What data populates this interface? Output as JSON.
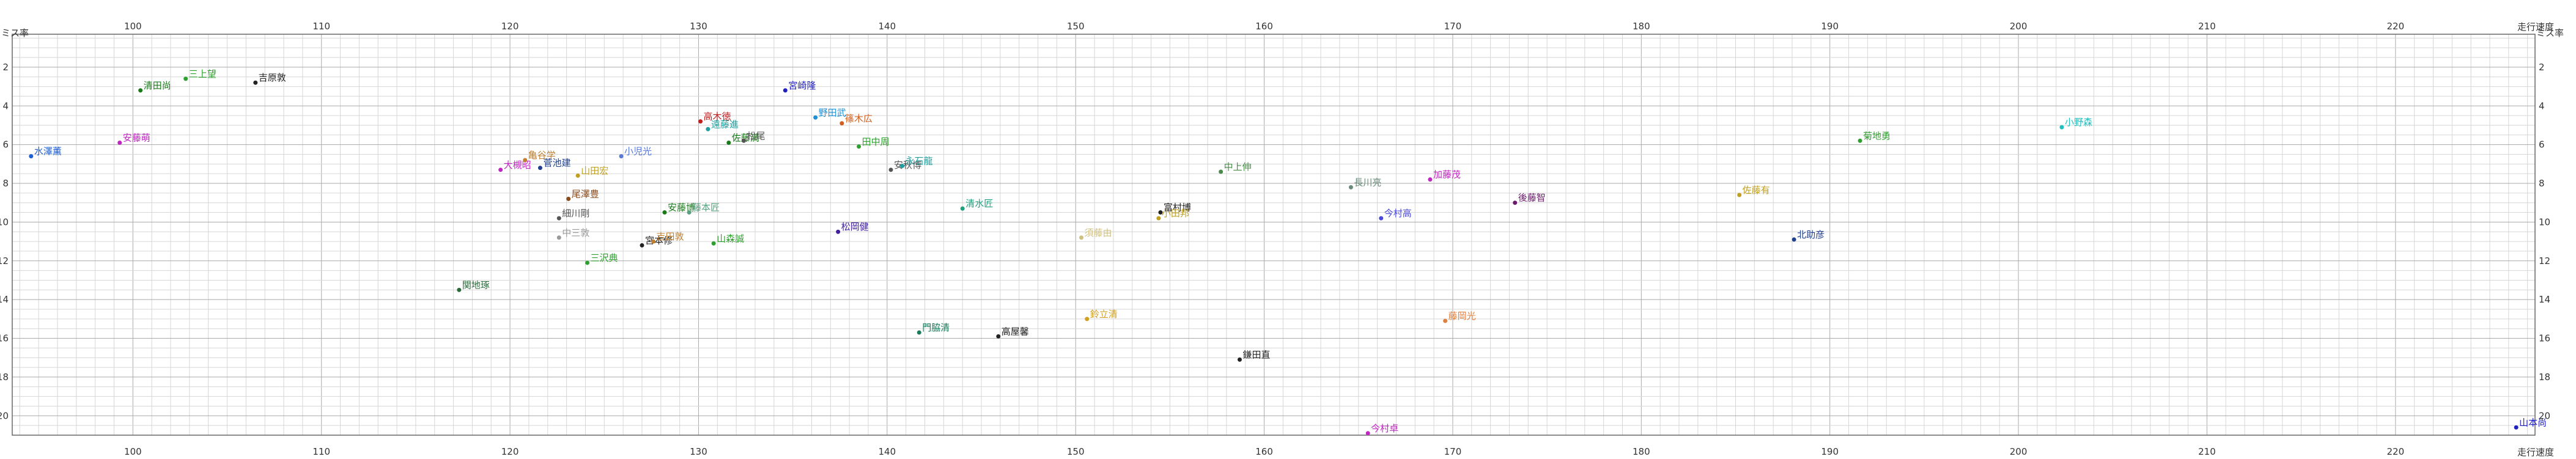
{
  "chart_data": {
    "type": "scatter",
    "xlabel": "走行速度",
    "ylabel": "ミス率",
    "xlim": [
      93.6,
      227.4
    ],
    "ylim": [
      0.3,
      21.0
    ],
    "x_ticks": [
      100,
      110,
      120,
      130,
      140,
      150,
      160,
      170,
      180,
      190,
      200,
      210,
      220
    ],
    "y_ticks": [
      2,
      4,
      6,
      8,
      10,
      12,
      14,
      16,
      18,
      20
    ],
    "grid": true,
    "points": [
      {
        "name": "水澤薫",
        "x": 94.6,
        "y": 6.6,
        "color": "#1f5fd6"
      },
      {
        "name": "安藤萌",
        "x": 99.3,
        "y": 5.9,
        "color": "#c026c0"
      },
      {
        "name": "清田尚",
        "x": 100.4,
        "y": 3.2,
        "color": "#1a7a1a"
      },
      {
        "name": "三上望",
        "x": 102.8,
        "y": 2.6,
        "color": "#2ea02e"
      },
      {
        "name": "吉原敦",
        "x": 106.5,
        "y": 2.8,
        "color": "#222222"
      },
      {
        "name": "関地琢",
        "x": 117.3,
        "y": 13.5,
        "color": "#2a6b3a"
      },
      {
        "name": "大槻昭",
        "x": 119.5,
        "y": 7.3,
        "color": "#c026c0"
      },
      {
        "name": "亀谷学",
        "x": 120.8,
        "y": 6.8,
        "color": "#c08030"
      },
      {
        "name": "菅池建",
        "x": 121.6,
        "y": 7.2,
        "color": "#1f3f8f"
      },
      {
        "name": "山田宏",
        "x": 123.6,
        "y": 7.6,
        "color": "#c0a020"
      },
      {
        "name": "小児光",
        "x": 125.9,
        "y": 6.6,
        "color": "#5a7ad6"
      },
      {
        "name": "尾澤豊",
        "x": 123.1,
        "y": 8.8,
        "color": "#8b4a1a"
      },
      {
        "name": "細川剛",
        "x": 122.6,
        "y": 9.8,
        "color": "#555555"
      },
      {
        "name": "中三敦",
        "x": 122.6,
        "y": 10.8,
        "color": "#9a9a9a"
      },
      {
        "name": "三沢典",
        "x": 124.1,
        "y": 12.1,
        "color": "#2ea02e"
      },
      {
        "name": "宮本修",
        "x": 127.0,
        "y": 11.2,
        "color": "#222222"
      },
      {
        "name": "吉田敦",
        "x": 127.6,
        "y": 11.0,
        "color": "#c08030"
      },
      {
        "name": "安藤博",
        "x": 128.2,
        "y": 9.5,
        "color": "#1a7a1a"
      },
      {
        "name": "藤本匠",
        "x": 129.5,
        "y": 9.5,
        "color": "#5aa080"
      },
      {
        "name": "山森誠",
        "x": 130.8,
        "y": 11.1,
        "color": "#2ea02e"
      },
      {
        "name": "高木徳",
        "x": 130.1,
        "y": 4.8,
        "color": "#c02020"
      },
      {
        "name": "遠藤進",
        "x": 130.5,
        "y": 5.2,
        "color": "#1fa0a0"
      },
      {
        "name": "佐藤満",
        "x": 131.6,
        "y": 5.9,
        "color": "#1a7a1a"
      },
      {
        "name": "松尾",
        "x": 132.4,
        "y": 5.8,
        "color": "#555555"
      },
      {
        "name": "宮崎隆",
        "x": 134.6,
        "y": 3.2,
        "color": "#2020c0"
      },
      {
        "name": "野田武",
        "x": 136.2,
        "y": 4.6,
        "color": "#1f8fd6"
      },
      {
        "name": "篠木広",
        "x": 137.6,
        "y": 4.9,
        "color": "#d06020"
      },
      {
        "name": "田中周",
        "x": 138.5,
        "y": 6.1,
        "color": "#2ea02e"
      },
      {
        "name": "松岡健",
        "x": 137.4,
        "y": 10.5,
        "color": "#4020a0"
      },
      {
        "name": "安秋博",
        "x": 140.2,
        "y": 7.3,
        "color": "#555555"
      },
      {
        "name": "永石龍",
        "x": 140.8,
        "y": 7.1,
        "color": "#1fa0a0"
      },
      {
        "name": "門脇清",
        "x": 141.7,
        "y": 15.7,
        "color": "#1a7a5a"
      },
      {
        "name": "清水匠",
        "x": 144.0,
        "y": 9.3,
        "color": "#1fa080"
      },
      {
        "name": "高屋馨",
        "x": 145.9,
        "y": 15.9,
        "color": "#222222"
      },
      {
        "name": "須藤由",
        "x": 150.3,
        "y": 10.8,
        "color": "#d0c080"
      },
      {
        "name": "鈴立清",
        "x": 150.6,
        "y": 15.0,
        "color": "#d0a020"
      },
      {
        "name": "富村博",
        "x": 154.5,
        "y": 9.5,
        "color": "#222222"
      },
      {
        "name": "小田邦",
        "x": 154.4,
        "y": 9.8,
        "color": "#c0a020"
      },
      {
        "name": "鎌田直",
        "x": 158.7,
        "y": 17.1,
        "color": "#222222"
      },
      {
        "name": "中上伸",
        "x": 157.7,
        "y": 7.4,
        "color": "#4a8a4a"
      },
      {
        "name": "長川亮",
        "x": 164.6,
        "y": 8.2,
        "color": "#6a8a7a"
      },
      {
        "name": "今村高",
        "x": 166.2,
        "y": 9.8,
        "color": "#4a4ad6"
      },
      {
        "name": "加藤茂",
        "x": 168.8,
        "y": 7.8,
        "color": "#c026c0"
      },
      {
        "name": "今村卓",
        "x": 165.5,
        "y": 20.9,
        "color": "#c026c0"
      },
      {
        "name": "藤岡光",
        "x": 169.6,
        "y": 15.1,
        "color": "#e08040"
      },
      {
        "name": "後藤智",
        "x": 173.3,
        "y": 9.0,
        "color": "#6a1a6a"
      },
      {
        "name": "佐藤有",
        "x": 185.2,
        "y": 8.6,
        "color": "#c0a020"
      },
      {
        "name": "北助彦",
        "x": 188.1,
        "y": 10.9,
        "color": "#1f3f8f"
      },
      {
        "name": "菊地勇",
        "x": 191.6,
        "y": 5.8,
        "color": "#2ea02e"
      },
      {
        "name": "小野森",
        "x": 202.3,
        "y": 5.1,
        "color": "#1fc0c0"
      },
      {
        "name": "山本尚",
        "x": 226.4,
        "y": 20.6,
        "color": "#2020c0"
      }
    ]
  }
}
